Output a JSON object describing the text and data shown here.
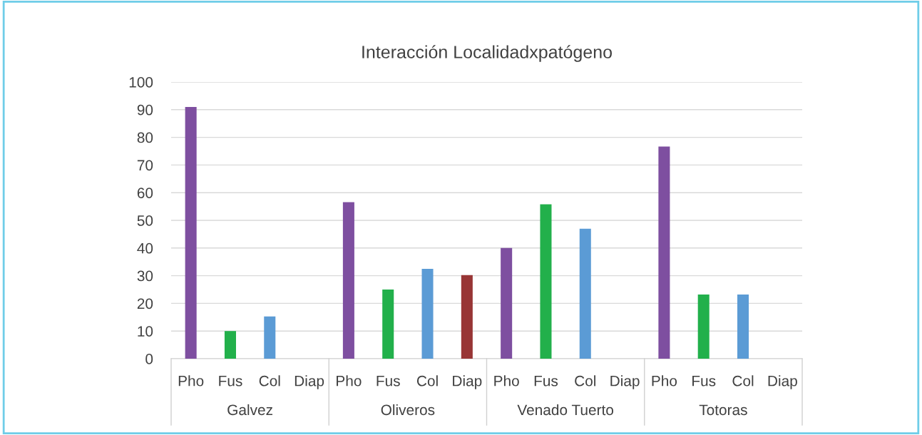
{
  "chart_data": {
    "type": "bar",
    "title": "Interacción Localidadxpatógeno",
    "categories": [
      "Galvez",
      "Oliveros",
      "Venado Tuerto",
      "Totoras"
    ],
    "series": [
      {
        "name": "Pho",
        "color": "#7e4fa0",
        "values": [
          91,
          56.6,
          40,
          76.7
        ]
      },
      {
        "name": "Fus",
        "color": "#22b04b",
        "values": [
          10,
          25,
          55.8,
          23.2
        ]
      },
      {
        "name": "Col",
        "color": "#5b9bd5",
        "values": [
          15.3,
          32.5,
          47,
          23.2
        ]
      },
      {
        "name": "Diap",
        "color": "#983535",
        "values": [
          0,
          30.2,
          0,
          0
        ]
      }
    ],
    "ylim": [
      0,
      100
    ],
    "yticks": [
      0,
      10,
      20,
      30,
      40,
      50,
      60,
      70,
      80,
      90,
      100
    ],
    "grid": "y",
    "legend": false
  }
}
